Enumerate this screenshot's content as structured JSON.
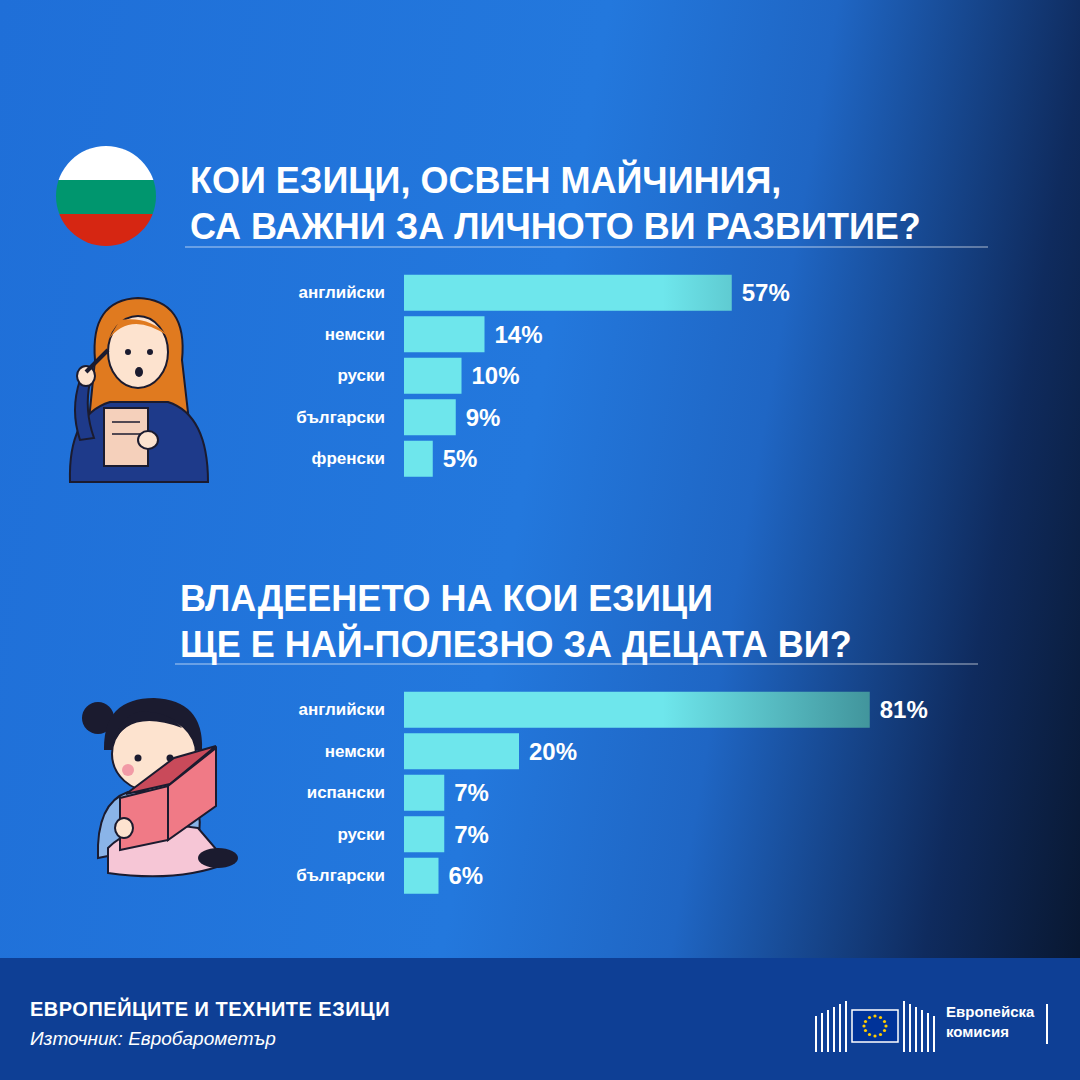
{
  "chart_data": [
    {
      "type": "bar",
      "orientation": "horizontal",
      "title": [
        "КОИ ЕЗИЦИ, ОСВЕН МАЙЧИНИЯ,",
        "СА ВАЖНИ ЗА ЛИЧНОТО ВИ РАЗВИТИЕ?"
      ],
      "categories": [
        "английски",
        "немски",
        "руски",
        "български",
        "френски"
      ],
      "values": [
        57,
        14,
        10,
        9,
        5
      ],
      "value_labels": [
        "57%",
        "14%",
        "10%",
        "9%",
        "5%"
      ],
      "color": "#6ee6ec",
      "xlim": [
        0,
        100
      ],
      "grid": false,
      "data_labels": true,
      "tick_labels": "y"
    },
    {
      "type": "bar",
      "orientation": "horizontal",
      "title": [
        "ВЛАДЕЕНЕТО НА КОИ ЕЗИЦИ",
        "ЩЕ Е НАЙ-ПОЛЕЗНО ЗА ДЕЦАТА ВИ?"
      ],
      "categories": [
        "английски",
        "немски",
        "испански",
        "руски",
        "български"
      ],
      "values": [
        81,
        20,
        7,
        7,
        6
      ],
      "value_labels": [
        "81%",
        "20%",
        "7%",
        "7%",
        "6%"
      ],
      "color": "#6ee6ec",
      "xlim": [
        0,
        100
      ],
      "grid": false,
      "data_labels": true,
      "tick_labels": "y"
    }
  ],
  "footer": {
    "title": "ЕВРОПЕЙЦИТЕ И ТЕХНИТЕ ЕЗИЦИ",
    "source": "Източник: Евробарометър",
    "logo": "Европейска комисия"
  }
}
